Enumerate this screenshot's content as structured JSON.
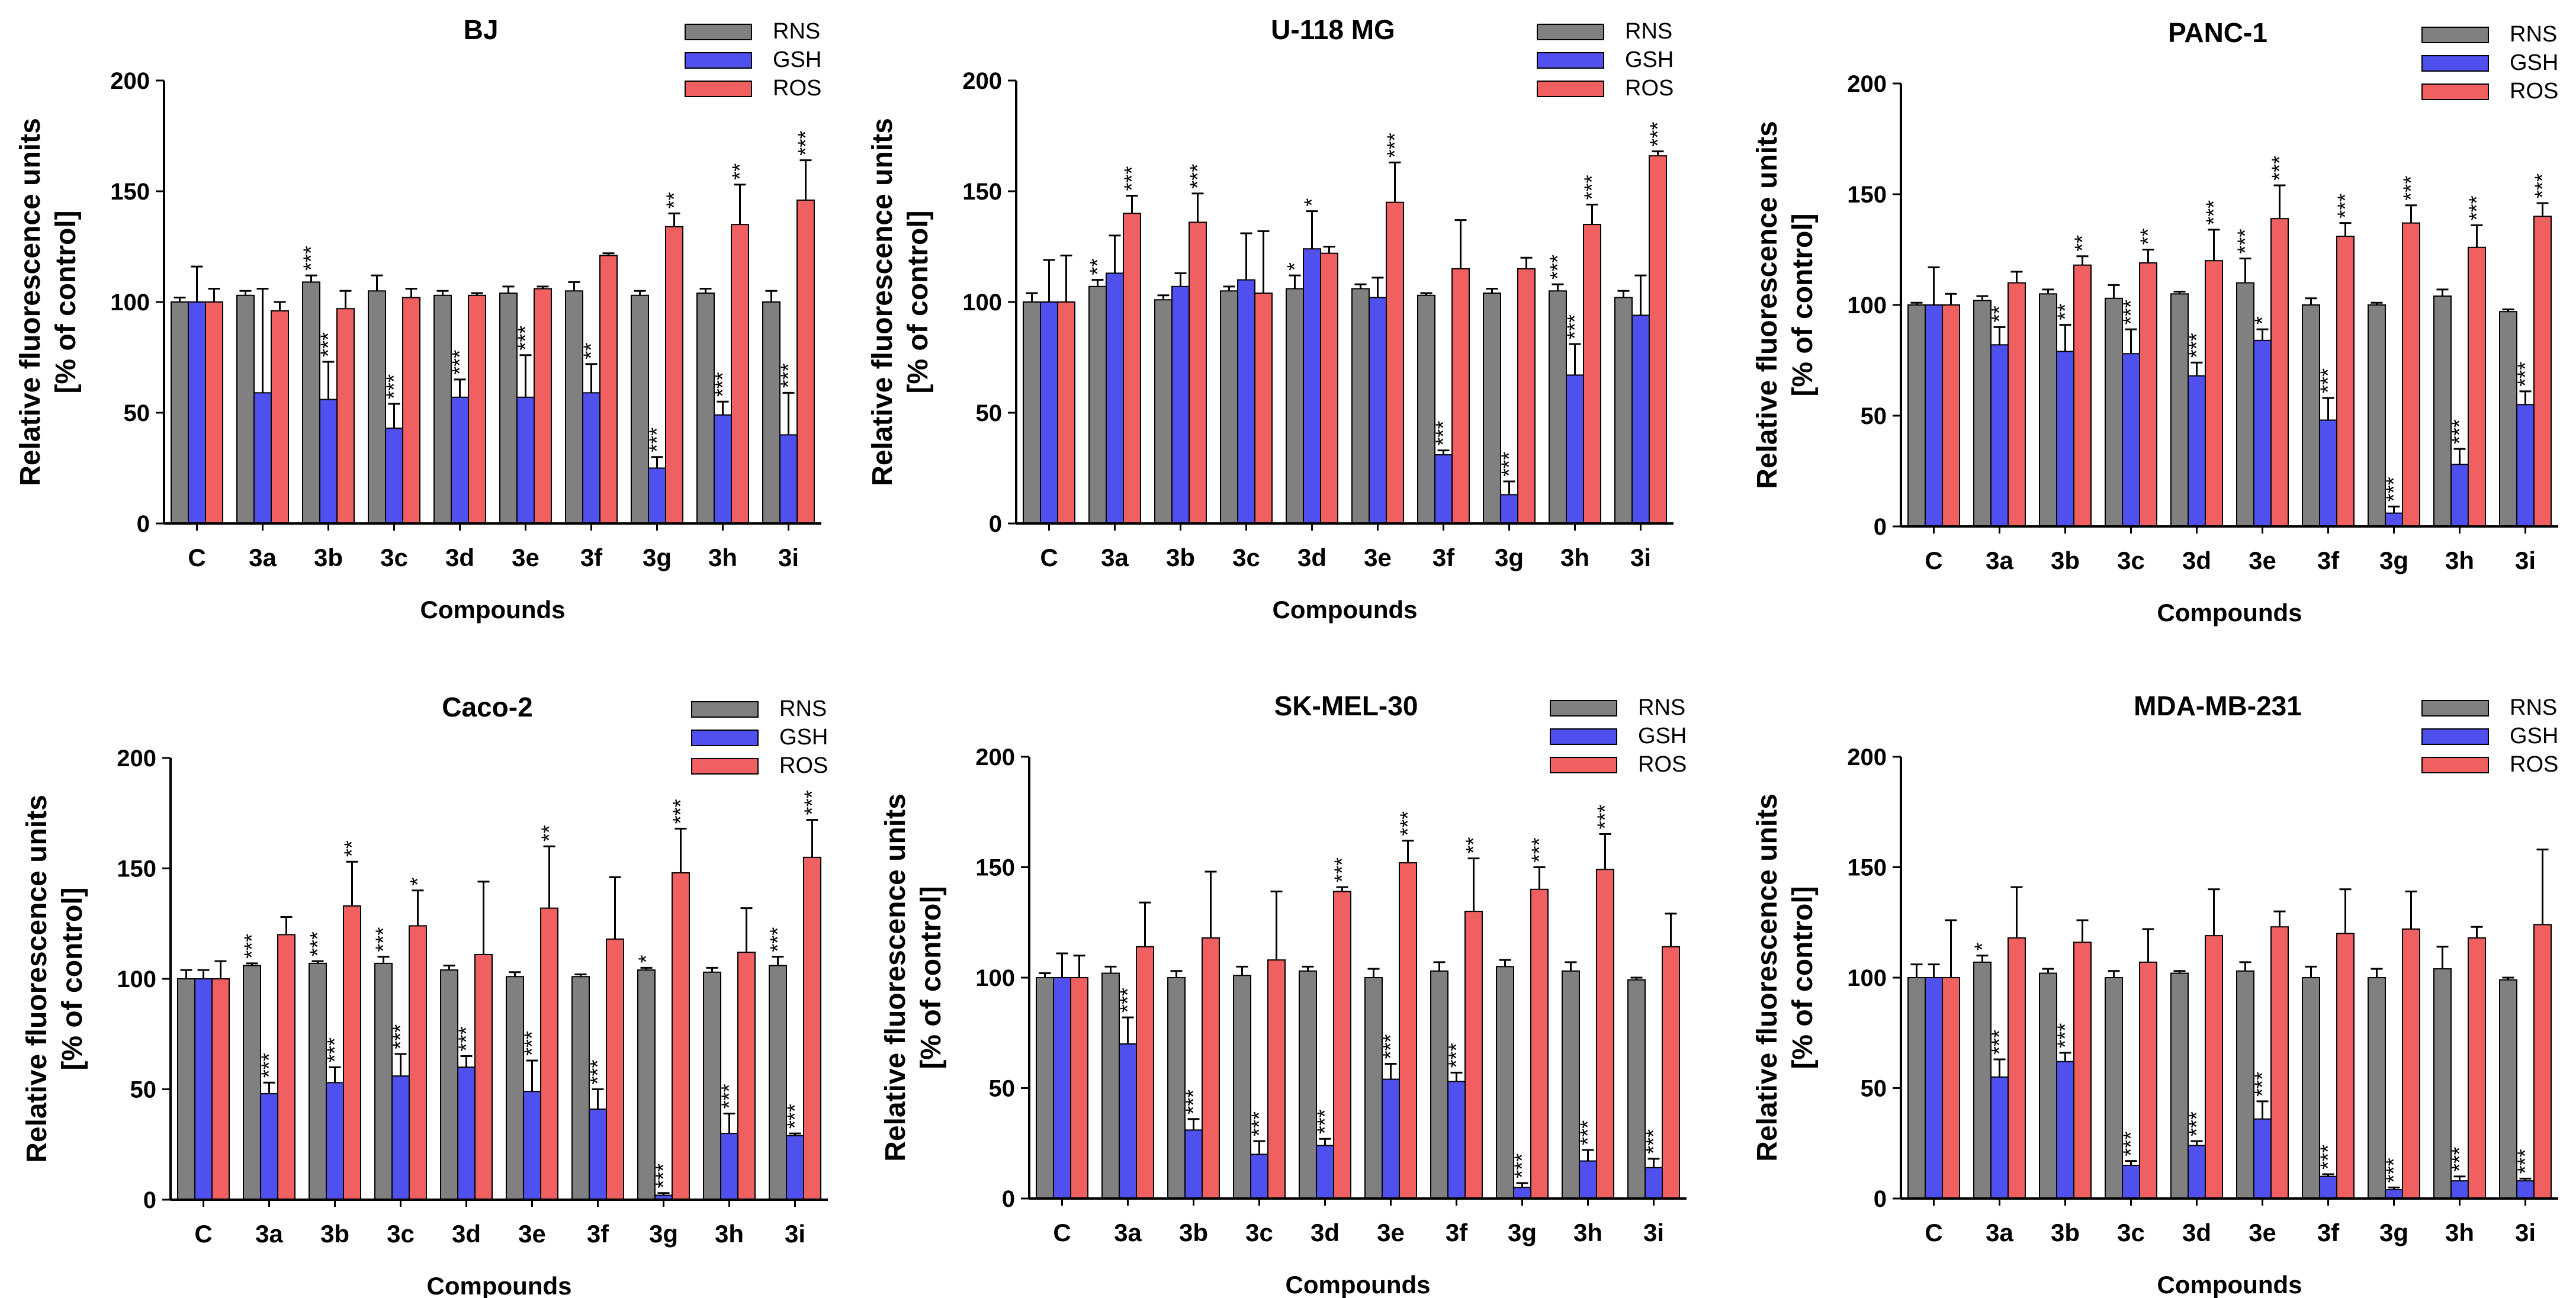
{
  "figure": {
    "legend": [
      "RNS",
      "GSH",
      "ROS"
    ],
    "colors": {
      "RNS": "#808080",
      "GSH": "#5050ee",
      "ROS": "#f06060",
      "axis": "#000000"
    }
  },
  "chart_data": [
    {
      "type": "bar",
      "title": "BJ",
      "xlabel": "Compounds",
      "ylabel_line1": "Relative fluorescence units",
      "ylabel_line2": "[% of control]",
      "ylim": [
        0,
        200
      ],
      "yticks": [
        "0",
        "50",
        "100",
        "150",
        "200"
      ],
      "categories": [
        "C",
        "3a",
        "3b",
        "3c",
        "3d",
        "3e",
        "3f",
        "3g",
        "3h",
        "3i"
      ],
      "legend_position": "top-right",
      "series": [
        {
          "name": "RNS",
          "values": [
            100,
            103,
            109,
            105,
            103,
            104,
            105,
            103,
            104,
            100
          ],
          "errors": [
            2,
            2,
            3,
            7,
            2,
            3,
            4,
            2,
            2,
            5
          ],
          "sig": [
            "",
            "",
            "***",
            "",
            "",
            "",
            "",
            "",
            "",
            ""
          ]
        },
        {
          "name": "GSH",
          "values": [
            100,
            59,
            56,
            43,
            57,
            57,
            59,
            25,
            49,
            40
          ],
          "errors": [
            16,
            47,
            17,
            11,
            8,
            19,
            13,
            5,
            6,
            19
          ],
          "sig": [
            "",
            "",
            "***",
            "***",
            "***",
            "***",
            "**",
            "***",
            "***",
            "***"
          ]
        },
        {
          "name": "ROS",
          "values": [
            100,
            96,
            97,
            102,
            103,
            106,
            121,
            134,
            135,
            146
          ],
          "errors": [
            6,
            4,
            8,
            4,
            1,
            1,
            1,
            6,
            18,
            18
          ],
          "sig": [
            "",
            "",
            "",
            "",
            "",
            "",
            "",
            "**",
            "**",
            "***"
          ]
        }
      ]
    },
    {
      "type": "bar",
      "title": "U-118 MG",
      "xlabel": "Compounds",
      "ylabel_line1": "Relative fluorescence units",
      "ylabel_line2": "[% of control]",
      "ylim": [
        0,
        200
      ],
      "yticks": [
        "0",
        "50",
        "100",
        "150",
        "200"
      ],
      "categories": [
        "C",
        "3a",
        "3b",
        "3c",
        "3d",
        "3e",
        "3f",
        "3g",
        "3h",
        "3i"
      ],
      "legend_position": "top-right",
      "series": [
        {
          "name": "RNS",
          "values": [
            100,
            107,
            101,
            105,
            106,
            106,
            103,
            104,
            105,
            102
          ],
          "errors": [
            4,
            3,
            2,
            2,
            6,
            2,
            1,
            2,
            3,
            3
          ],
          "sig": [
            "",
            "**",
            "",
            "",
            "*",
            "",
            "",
            "",
            "***",
            ""
          ]
        },
        {
          "name": "GSH",
          "values": [
            100,
            113,
            107,
            110,
            124,
            102,
            31,
            13,
            67,
            94
          ],
          "errors": [
            19,
            17,
            6,
            21,
            17,
            9,
            2,
            6,
            14,
            18
          ],
          "sig": [
            "",
            "",
            "",
            "",
            "*",
            "",
            "***",
            "***",
            "***",
            ""
          ]
        },
        {
          "name": "ROS",
          "values": [
            100,
            140,
            136,
            104,
            122,
            145,
            115,
            115,
            135,
            166
          ],
          "errors": [
            21,
            8,
            13,
            28,
            3,
            18,
            22,
            5,
            9,
            2
          ],
          "sig": [
            "",
            "***",
            "***",
            "",
            "",
            "***",
            "",
            "",
            "***",
            "***"
          ]
        }
      ]
    },
    {
      "type": "bar",
      "title": "PANC-1",
      "xlabel": "Compounds",
      "ylabel_line1": "Relative fluorescence units",
      "ylabel_line2": "[% of control]",
      "ylim": [
        0,
        200
      ],
      "yticks": [
        "0",
        "50",
        "100",
        "150",
        "200"
      ],
      "categories": [
        "C",
        "3a",
        "3b",
        "3c",
        "3d",
        "3e",
        "3f",
        "3g",
        "3h",
        "3i"
      ],
      "legend_position": "top-right",
      "series": [
        {
          "name": "RNS",
          "values": [
            100,
            102,
            105,
            103,
            105,
            110,
            100,
            100,
            104,
            97
          ],
          "errors": [
            1,
            2,
            2,
            6,
            1,
            11,
            3,
            1,
            3,
            1
          ],
          "sig": [
            "",
            "",
            "",
            "",
            "",
            "***",
            "",
            "",
            "",
            ""
          ]
        },
        {
          "name": "GSH",
          "values": [
            100,
            82,
            79,
            78,
            68,
            84,
            48,
            6,
            28,
            55
          ],
          "errors": [
            17,
            8,
            12,
            11,
            6,
            5,
            10,
            3,
            7,
            6
          ],
          "sig": [
            "",
            "**",
            "**",
            "***",
            "***",
            "*",
            "***",
            "***",
            "***",
            "***"
          ]
        },
        {
          "name": "ROS",
          "values": [
            100,
            110,
            118,
            119,
            120,
            139,
            131,
            137,
            126,
            140
          ],
          "errors": [
            5,
            5,
            4,
            6,
            14,
            15,
            6,
            8,
            10,
            6
          ],
          "sig": [
            "",
            "",
            "**",
            "**",
            "***",
            "***",
            "***",
            "***",
            "***",
            "***"
          ]
        }
      ]
    },
    {
      "type": "bar",
      "title": "Caco-2",
      "xlabel": "Compounds",
      "ylabel_line1": "Relative fluorescence units",
      "ylabel_line2": "[% of control]",
      "ylim": [
        0,
        200
      ],
      "yticks": [
        "0",
        "50",
        "100",
        "150",
        "200"
      ],
      "categories": [
        "C",
        "3a",
        "3b",
        "3c",
        "3d",
        "3e",
        "3f",
        "3g",
        "3h",
        "3i"
      ],
      "legend_position": "top-right",
      "series": [
        {
          "name": "RNS",
          "values": [
            100,
            106,
            107,
            107,
            104,
            101,
            101,
            104,
            103,
            106
          ],
          "errors": [
            4,
            1,
            1,
            3,
            2,
            2,
            1,
            1,
            2,
            4
          ],
          "sig": [
            "",
            "***",
            "***",
            "***",
            "",
            "",
            "",
            "*",
            "",
            "***"
          ]
        },
        {
          "name": "GSH",
          "values": [
            100,
            48,
            53,
            56,
            60,
            49,
            41,
            2,
            30,
            29
          ],
          "errors": [
            4,
            5,
            7,
            10,
            5,
            14,
            9,
            1,
            9,
            1
          ],
          "sig": [
            "",
            "***",
            "***",
            "***",
            "***",
            "***",
            "***",
            "***",
            "***",
            "***"
          ]
        },
        {
          "name": "ROS",
          "values": [
            100,
            120,
            133,
            124,
            111,
            132,
            118,
            148,
            112,
            155
          ],
          "errors": [
            8,
            8,
            20,
            16,
            33,
            28,
            28,
            20,
            20,
            17
          ],
          "sig": [
            "",
            "",
            "**",
            "*",
            "",
            "**",
            "",
            "***",
            "",
            "***"
          ]
        }
      ]
    },
    {
      "type": "bar",
      "title": "SK-MEL-30",
      "xlabel": "Compounds",
      "ylabel_line1": "Relative fluorescence units",
      "ylabel_line2": "[% of control]",
      "ylim": [
        0,
        200
      ],
      "yticks": [
        "0",
        "50",
        "100",
        "150",
        "200"
      ],
      "categories": [
        "C",
        "3a",
        "3b",
        "3c",
        "3d",
        "3e",
        "3f",
        "3g",
        "3h",
        "3i"
      ],
      "legend_position": "top-right",
      "series": [
        {
          "name": "RNS",
          "values": [
            100,
            102,
            100,
            101,
            103,
            100,
            103,
            105,
            103,
            99
          ],
          "errors": [
            2,
            3,
            3,
            4,
            2,
            4,
            4,
            3,
            4,
            1
          ],
          "sig": [
            "",
            "",
            "",
            "",
            "",
            "",
            "",
            "",
            "",
            ""
          ]
        },
        {
          "name": "GSH",
          "values": [
            100,
            70,
            31,
            20,
            24,
            54,
            53,
            5,
            17,
            14
          ],
          "errors": [
            11,
            12,
            5,
            6,
            3,
            7,
            4,
            2,
            5,
            4
          ],
          "sig": [
            "",
            "***",
            "***",
            "***",
            "***",
            "***",
            "***",
            "***",
            "***",
            "***"
          ]
        },
        {
          "name": "ROS",
          "values": [
            100,
            114,
            118,
            108,
            139,
            152,
            130,
            140,
            149,
            114
          ],
          "errors": [
            10,
            20,
            30,
            31,
            2,
            10,
            24,
            10,
            16,
            15
          ],
          "sig": [
            "",
            "",
            "",
            "",
            "***",
            "***",
            "**",
            "***",
            "***",
            ""
          ]
        }
      ]
    },
    {
      "type": "bar",
      "title": "MDA-MB-231",
      "xlabel": "Compounds",
      "ylabel_line1": "Relative fluorescence units",
      "ylabel_line2": "[% of control]",
      "ylim": [
        0,
        200
      ],
      "yticks": [
        "0",
        "50",
        "100",
        "150",
        "200"
      ],
      "categories": [
        "C",
        "3a",
        "3b",
        "3c",
        "3d",
        "3e",
        "3f",
        "3g",
        "3h",
        "3i"
      ],
      "legend_position": "top-right",
      "series": [
        {
          "name": "RNS",
          "values": [
            100,
            107,
            102,
            100,
            102,
            103,
            100,
            100,
            104,
            99
          ],
          "errors": [
            6,
            3,
            2,
            3,
            1,
            4,
            5,
            4,
            10,
            1
          ],
          "sig": [
            "",
            "*",
            "",
            "",
            "",
            "",
            "",
            "",
            "",
            ""
          ]
        },
        {
          "name": "GSH",
          "values": [
            100,
            55,
            62,
            15,
            24,
            36,
            10,
            4,
            8,
            8
          ],
          "errors": [
            6,
            8,
            4,
            2,
            2,
            8,
            1,
            1,
            2,
            1
          ],
          "sig": [
            "",
            "***",
            "***",
            "***",
            "***",
            "***",
            "***",
            "***",
            "***",
            "***"
          ]
        },
        {
          "name": "ROS",
          "values": [
            100,
            118,
            116,
            107,
            119,
            123,
            120,
            122,
            118,
            124
          ],
          "errors": [
            26,
            23,
            10,
            15,
            21,
            7,
            20,
            17,
            5,
            34
          ],
          "sig": [
            "",
            "",
            "",
            "",
            "",
            "",
            "",
            "",
            "",
            ""
          ]
        }
      ]
    }
  ]
}
